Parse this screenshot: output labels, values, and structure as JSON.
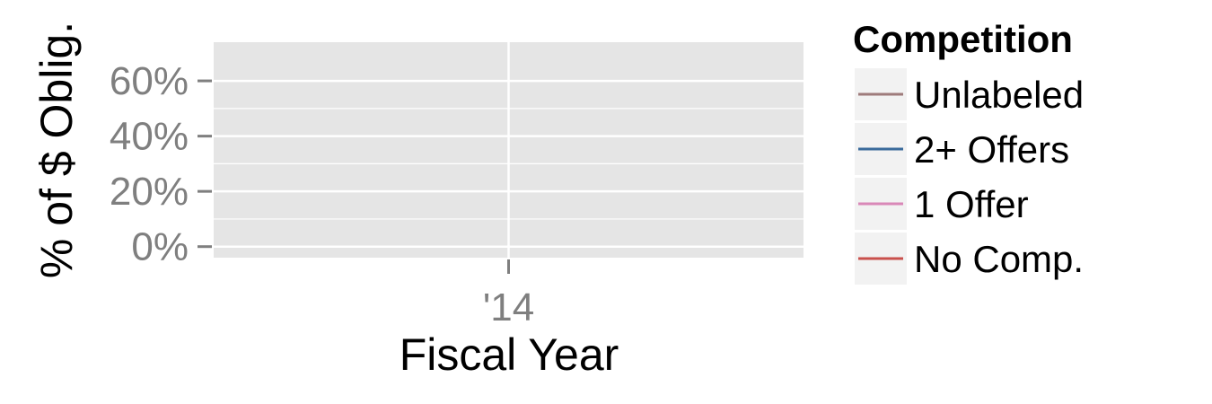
{
  "chart_data": {
    "type": "line",
    "title": "",
    "xlabel": "Fiscal Year",
    "ylabel": "% of $ Oblig.",
    "x_categories": [
      "'14"
    ],
    "x_tick_labels": [
      "'14"
    ],
    "y_ticks": [
      0,
      0.2,
      0.4,
      0.6
    ],
    "y_tick_labels": [
      "0%",
      "20%",
      "40%",
      "60%"
    ],
    "ylim": [
      -0.04,
      0.74
    ],
    "grid": true,
    "legend": {
      "title": "Competition",
      "position": "right",
      "entries": [
        {
          "label": "Unlabeled",
          "color": "#9e7b7b"
        },
        {
          "label": "2+ Offers",
          "color": "#3a6a9b"
        },
        {
          "label": "1 Offer",
          "color": "#d988b8"
        },
        {
          "label": "No Comp.",
          "color": "#c9504c"
        }
      ]
    },
    "series": []
  },
  "colors": {
    "panel_background": "#e5e5e5",
    "grid": "#ffffff",
    "legend_key_background": "#f2f2f2",
    "tick_mark": "#7f7f7f"
  }
}
